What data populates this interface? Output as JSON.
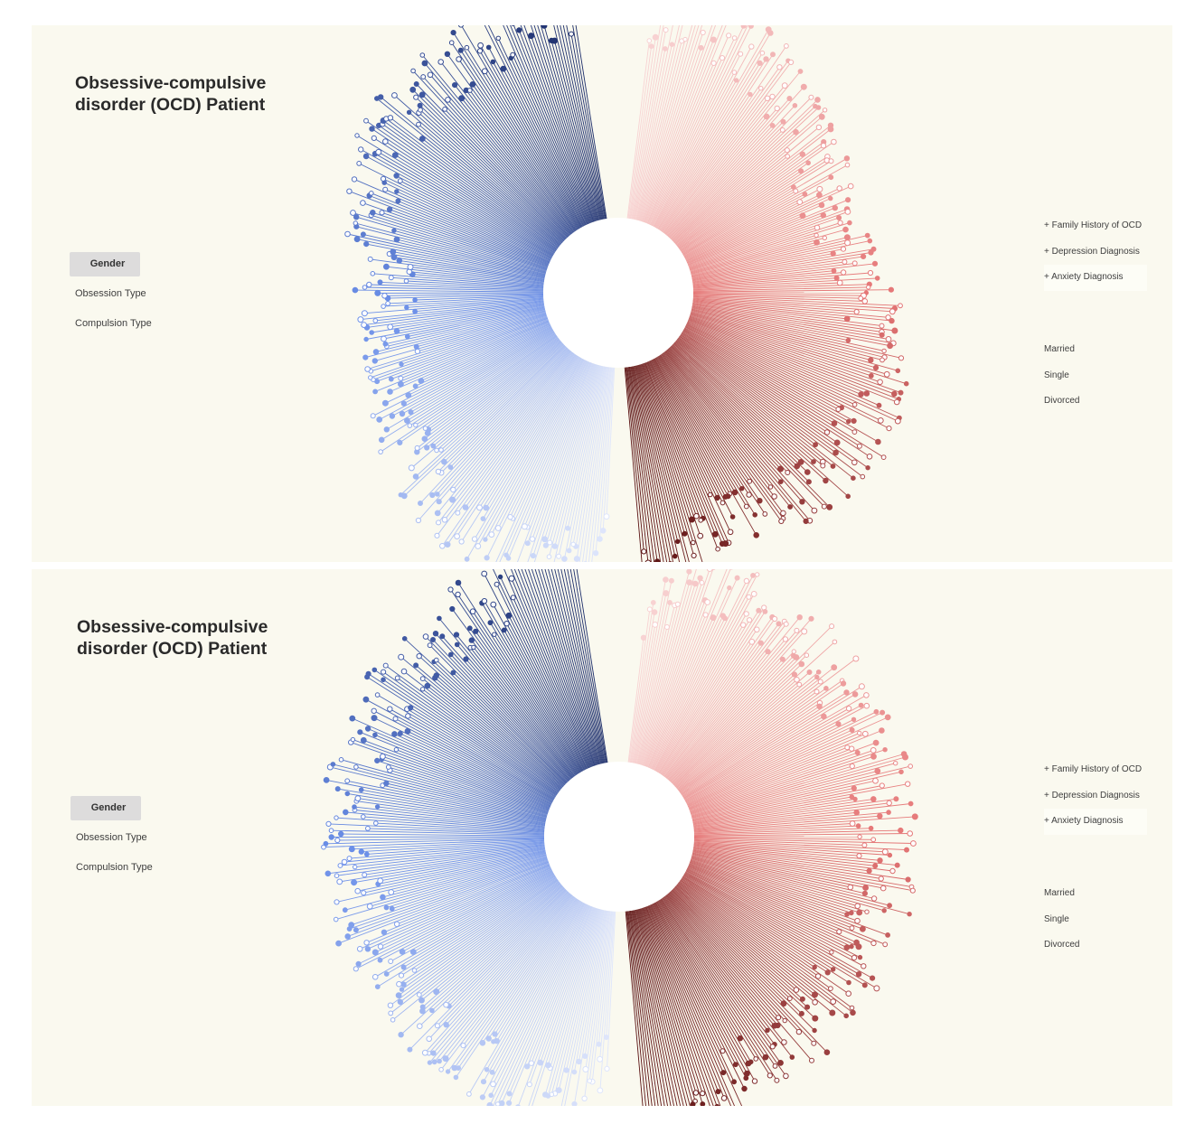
{
  "colors": {
    "background": "#faf9ef",
    "female_light": "#dfe6fb",
    "female_mid": "#6b8fe8",
    "female_dark": "#1d2e6a",
    "male_light": "#f8d3d3",
    "male_mid": "#e57676",
    "male_dark": "#5a1212"
  },
  "panels": [
    {
      "title": "Obsessive-compulsive\ndisorder (OCD) Patient",
      "group_by": [
        "Gender",
        "Obsession Type",
        "Compulsion Type"
      ],
      "active_group": "Gender",
      "filters": [
        "+ Family History of OCD",
        "+ Depression Diagnosis",
        "+ Anxiety Diagnosis"
      ],
      "marital_status": [
        "Married",
        "Single",
        "Divorced"
      ]
    },
    {
      "title": "Obsessive-compulsive\ndisorder (OCD) Patient",
      "group_by": [
        "Gender",
        "Obsession Type",
        "Compulsion Type"
      ],
      "active_group": "Gender",
      "filters": [
        "+ Family History of OCD",
        "+ Depression Diagnosis",
        "+ Anxiety Diagnosis"
      ],
      "marital_status": [
        "Married",
        "Single",
        "Divorced"
      ]
    }
  ],
  "chart_data": [
    {
      "type": "radial lollipop",
      "grouping": "Gender",
      "series": [
        {
          "patients": 260,
          "segments": [
            "light (blue)",
            "dark (blue)"
          ]
        },
        {
          "patients": 260,
          "segments": [
            "light (red)",
            "dark (red)"
          ]
        }
      ],
      "marker_styles": [
        "filled",
        "hollow"
      ]
    },
    {
      "type": "radial lollipop",
      "grouping": "Gender",
      "series": [
        {
          "patients": 260,
          "segments": [
            "light (blue)",
            "dark (blue)"
          ]
        },
        {
          "patients": 260,
          "segments": [
            "light (red)",
            "dark (red)"
          ]
        }
      ],
      "marker_styles": [
        "filled",
        "hollow"
      ]
    }
  ]
}
